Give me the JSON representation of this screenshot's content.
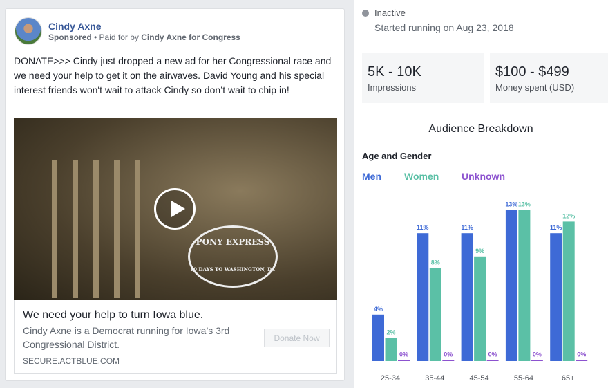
{
  "ad": {
    "page_name": "Cindy Axne",
    "sponsored": "Sponsored",
    "paid_for_prefix": "Paid for by",
    "paid_for": "Cindy Axne for Congress",
    "body": "DONATE>>> Cindy just dropped a new ad for her Congressional race and we need your help to get it on the airwaves. David Young and his special interest friends won't wait to attack Cindy so don’t wait to chip in!",
    "video_logo_title": "PONY EXPRESS",
    "video_logo_sub": "10 DAYS TO WASHINGTON, DC",
    "link_title": "We need your help to turn Iowa blue.",
    "link_description": "Cindy Axne is a Democrat running for Iowa’s 3rd Congressional District.",
    "link_url": "SECURE.ACTBLUE.COM",
    "cta": "Donate Now"
  },
  "status": {
    "label": "Inactive",
    "started": "Started running on Aug 23, 2018"
  },
  "stats": [
    {
      "value": "5K - 10K",
      "label": "Impressions"
    },
    {
      "value": "$100 - $499",
      "label": "Money spent (USD)"
    }
  ],
  "audience": {
    "title": "Audience Breakdown",
    "section": "Age and Gender"
  },
  "colors": {
    "men": "#3e6ad6",
    "women": "#5bc0a6",
    "unknown": "#8c52cf",
    "link": "#385898"
  },
  "chart_data": {
    "type": "bar",
    "categories": [
      "25-34",
      "35-44",
      "45-54",
      "55-64",
      "65+"
    ],
    "series": [
      {
        "name": "Men",
        "values": [
          4,
          11,
          11,
          13,
          11
        ]
      },
      {
        "name": "Women",
        "values": [
          2,
          8,
          9,
          13,
          12
        ]
      },
      {
        "name": "Unknown",
        "values": [
          0,
          0,
          0,
          0,
          0
        ]
      }
    ],
    "value_format": "%",
    "legend_placement": "top-left"
  }
}
